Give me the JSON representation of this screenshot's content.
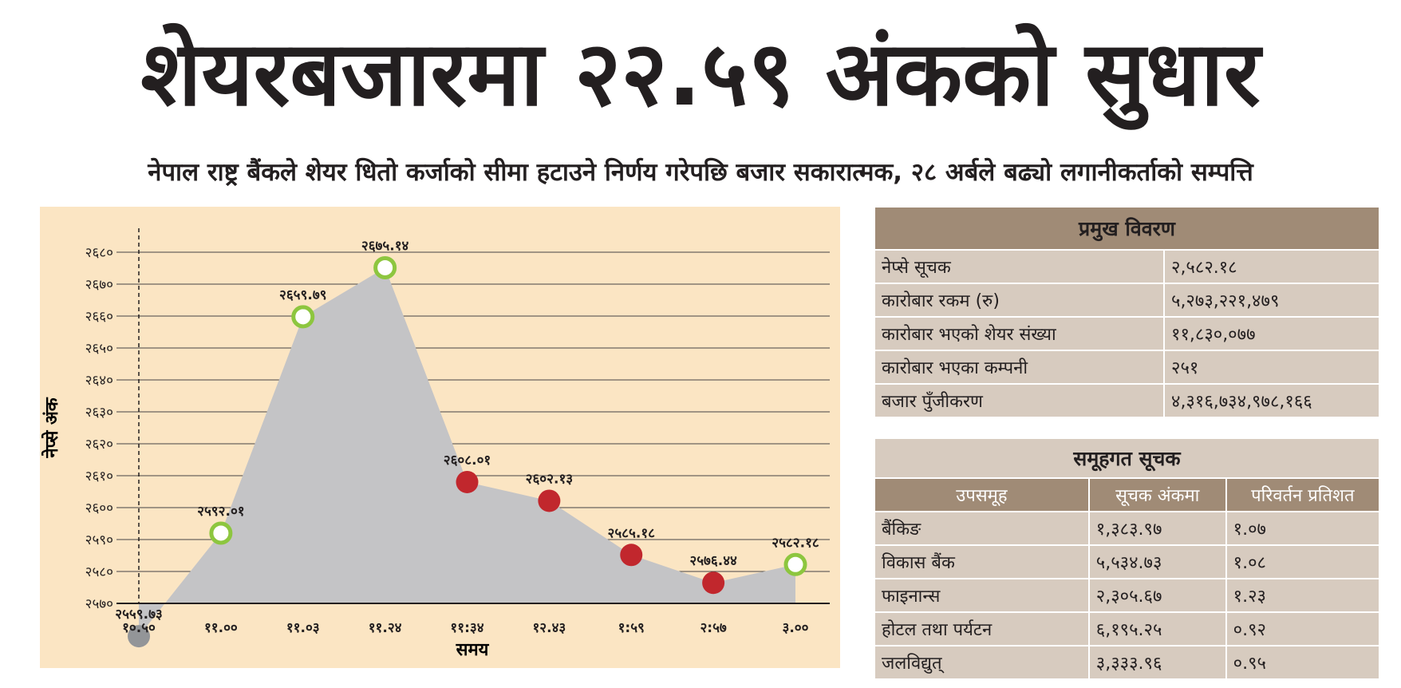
{
  "header": {
    "title": "शेयरबजारमा २२.५९ अंकको सुधार",
    "subtitle": "नेपाल राष्ट्र बैंकले शेयर धितो कर्जाको सीमा हटाउने निर्णय गरेपछि बजार सकारात्मक, २८ अर्बले बढ्यो लगानीकर्ताको सम्पत्ति"
  },
  "chart_data": {
    "type": "area",
    "x_label": "समय",
    "y_label": "नेप्से अंक",
    "categories": [
      "१०.५०",
      "११.००",
      "११.०३",
      "११.२४",
      "११:३४",
      "१२.४३",
      "१:५९",
      "२:५७",
      "३.००"
    ],
    "values": [
      2559.73,
      2592.01,
      2659.79,
      2675.14,
      2608.01,
      2602.13,
      2585.18,
      2576.44,
      2582.18
    ],
    "value_labels": [
      "२५५९.७३",
      "२५९२.०१",
      "२६५९.७९",
      "२६७५.१४",
      "२६०८.०१",
      "२६०२.१३",
      "२५८५.१८",
      "२५७६.४४",
      "२५८२.१८"
    ],
    "color": "#c4c4c6",
    "marker_fills": [
      "#939598",
      "#ffffff",
      "#ffffff",
      "#ffffff",
      "#c1272d",
      "#c1272d",
      "#c1272d",
      "#c1272d",
      "#ffffff"
    ],
    "marker_strokes": [
      "#939598",
      "#8dc63f",
      "#8dc63f",
      "#8dc63f",
      "#c1272d",
      "#c1272d",
      "#c1272d",
      "#c1272d",
      "#8dc63f"
    ],
    "ylim": [
      2570,
      2680
    ],
    "yticks": [
      {
        "value": 2570,
        "label": "२५७०"
      },
      {
        "value": 2580,
        "label": "२५८०"
      },
      {
        "value": 2590,
        "label": "२५९०"
      },
      {
        "value": 2600,
        "label": "२६००"
      },
      {
        "value": 2610,
        "label": "२६१०"
      },
      {
        "value": 2620,
        "label": "२६२०"
      },
      {
        "value": 2630,
        "label": "२६३०"
      },
      {
        "value": 2640,
        "label": "२६४०"
      },
      {
        "value": 2650,
        "label": "२६५०"
      },
      {
        "value": 2660,
        "label": "२६६०"
      },
      {
        "value": 2670,
        "label": "२६७०"
      },
      {
        "value": 2680,
        "label": "२६८०"
      }
    ],
    "grid": true
  },
  "summary_table": {
    "title": "प्रमुख विवरण",
    "rows": [
      [
        "नेप्से सूचक",
        "२,५८२.१८"
      ],
      [
        "कारोबार रकम (रु)",
        "५,२७३,२२१,४७९"
      ],
      [
        "कारोबार भएको शेयर संख्या",
        "११,८३०,०७७"
      ],
      [
        "कारोबार भएका कम्पनी",
        "२५१"
      ],
      [
        "बजार पुँजीकरण",
        "४,३१६,७३४,९७८,१६६"
      ]
    ]
  },
  "sector_table": {
    "title": "समूहगत सूचक",
    "columns": [
      "उपसमूह",
      "सूचक अंकमा",
      "परिवर्तन प्रतिशत"
    ],
    "rows": [
      [
        "बैंकिङ",
        "१,३८३.९७",
        "१.०७"
      ],
      [
        "विकास बैंक",
        "५,५३४.७३",
        "१.०८"
      ],
      [
        "फाइनान्स",
        "२,३०५.६७",
        "१.२३"
      ],
      [
        "होटल तथा पर्यटन",
        "६,१९५.२५",
        "०.९२"
      ],
      [
        "जलविद्युत्",
        "३,३३३.९६",
        "०.९५"
      ]
    ]
  }
}
